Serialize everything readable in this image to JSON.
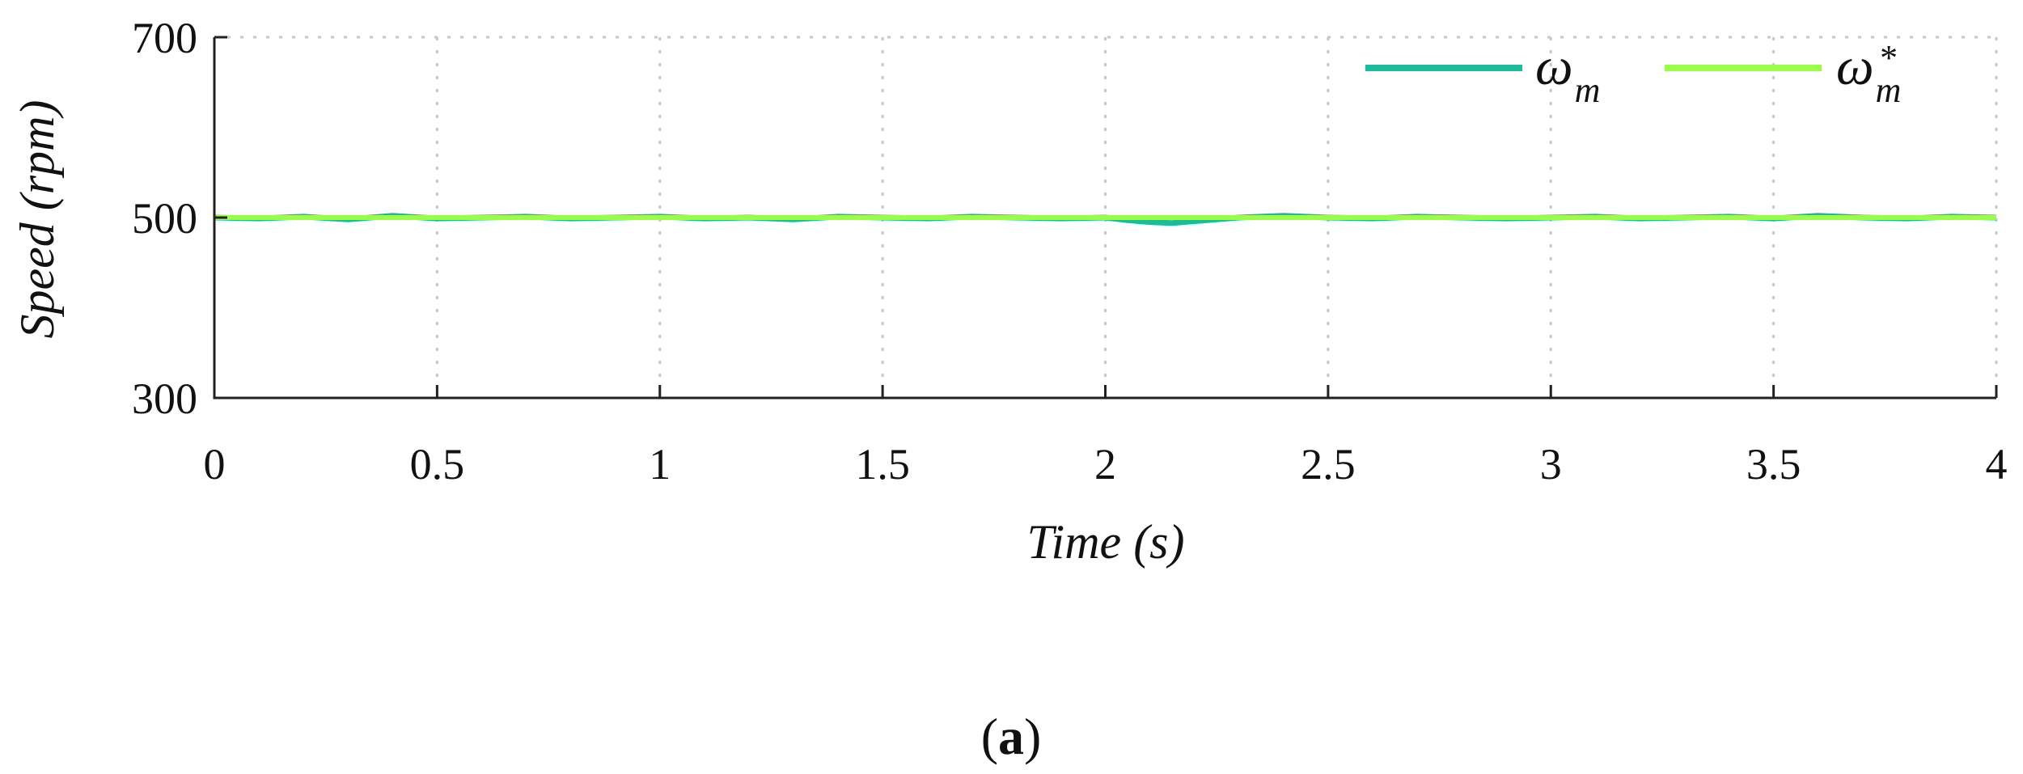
{
  "chart_data": {
    "type": "line",
    "title": "",
    "xlabel": "Time (s)",
    "ylabel": "Speed (rpm)",
    "xlim": [
      0,
      4
    ],
    "ylim": [
      300,
      700
    ],
    "x_ticks": [
      0,
      0.5,
      1,
      1.5,
      2,
      2.5,
      3,
      3.5,
      4
    ],
    "x_tick_labels": [
      "0",
      "0.5",
      "1",
      "1.5",
      "2",
      "2.5",
      "3",
      "3.5",
      "4"
    ],
    "y_ticks": [
      300,
      500,
      700
    ],
    "y_tick_labels": [
      "300",
      "500",
      "700"
    ],
    "grid": true,
    "legend": {
      "placement": "top-right",
      "entries": [
        {
          "symbol": "ω",
          "subscript": "m",
          "superscript": ""
        },
        {
          "symbol": "ω",
          "subscript": "m",
          "superscript": "*"
        }
      ]
    },
    "series": [
      {
        "name": "ω_m",
        "color": "#1abc9c",
        "x": [
          0,
          0.1,
          0.2,
          0.3,
          0.4,
          0.5,
          0.6,
          0.7,
          0.8,
          0.9,
          1.0,
          1.1,
          1.2,
          1.3,
          1.4,
          1.5,
          1.6,
          1.7,
          1.8,
          1.9,
          2.0,
          2.05,
          2.1,
          2.15,
          2.2,
          2.25,
          2.3,
          2.4,
          2.5,
          2.6,
          2.7,
          2.8,
          2.9,
          3.0,
          3.1,
          3.2,
          3.3,
          3.4,
          3.5,
          3.6,
          3.7,
          3.8,
          3.9,
          4.0
        ],
        "y": [
          500,
          499,
          501,
          498,
          502,
          499,
          500,
          501,
          499,
          500,
          501,
          499,
          500,
          498,
          501,
          500,
          499,
          501,
          500,
          499,
          500,
          497,
          495,
          494,
          496,
          498,
          500,
          502,
          500,
          499,
          501,
          500,
          499,
          500,
          501,
          499,
          500,
          501,
          499,
          502,
          500,
          499,
          501,
          500
        ]
      },
      {
        "name": "ω_m*",
        "color": "#99ff44",
        "x": [
          0,
          4
        ],
        "y": [
          500,
          500
        ]
      }
    ]
  },
  "caption": {
    "open": "(",
    "label": "a",
    "close": ")"
  }
}
